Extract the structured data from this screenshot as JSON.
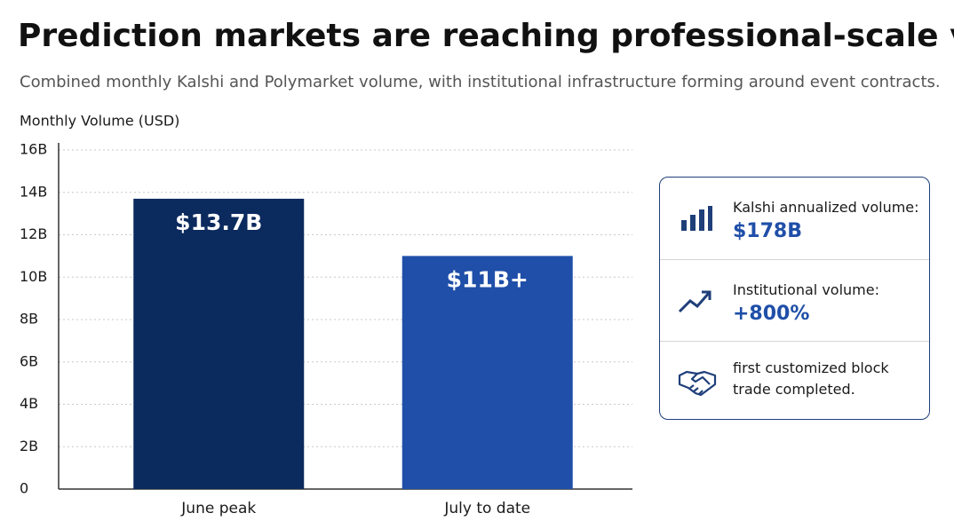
{
  "chart_data": {
    "type": "bar",
    "title": "Prediction markets are reaching professional-scale volume.",
    "subtitle": "Combined monthly Kalshi and Polymarket volume, with institutional infrastructure forming around event contracts.",
    "y_label": "Monthly Volume (USD)",
    "categories": [
      "June peak",
      "July to date"
    ],
    "series": [
      {
        "name": "Monthly volume",
        "values": [
          13.7,
          11
        ],
        "value_labels": [
          "$13.7B",
          "$11B+"
        ],
        "colors": [
          "#0b2a5e",
          "#1f4fa8"
        ]
      }
    ],
    "ylim": [
      0,
      16
    ],
    "yticks": [
      0,
      {
        "value": 2,
        "label": "2B"
      },
      {
        "value": 4,
        "label": "4B"
      },
      {
        "value": 6,
        "label": "6B"
      },
      {
        "value": 8,
        "label": "8B"
      },
      {
        "value": 10,
        "label": "10B"
      },
      {
        "value": 12,
        "label": "12B"
      },
      {
        "value": 14,
        "label": "14B"
      },
      {
        "value": 16,
        "label": "16B"
      }
    ],
    "grid": true
  },
  "panel": {
    "items": [
      {
        "label": "Kalshi annualized volume:",
        "value": "$178B"
      },
      {
        "label": "Institutional volume:",
        "value": "+800%"
      },
      {
        "label": "first customized block trade completed."
      }
    ]
  }
}
